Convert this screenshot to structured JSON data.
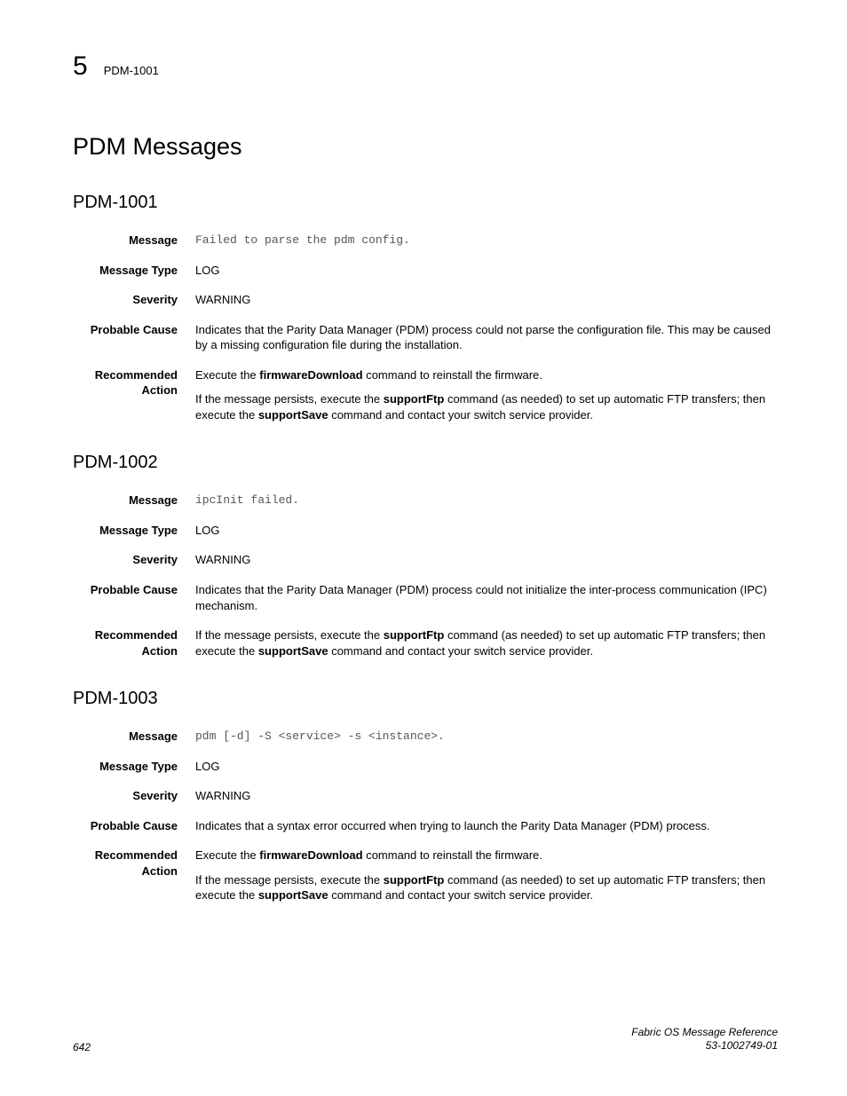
{
  "header": {
    "chapter": "5",
    "code": "PDM-1001"
  },
  "title": "PDM Messages",
  "labels": {
    "message": "Message",
    "message_type": "Message Type",
    "severity": "Severity",
    "probable_cause": "Probable Cause",
    "recommended_action": "Recommended Action"
  },
  "messages": [
    {
      "id": "PDM-1001",
      "message": "Failed to parse the pdm config.",
      "message_type": "LOG",
      "severity": "WARNING",
      "probable_cause": "Indicates that the Parity Data Manager (PDM) process could not parse the configuration file. This may be caused by a missing configuration file during the installation.",
      "recommended_action": [
        [
          {
            "t": "Execute the "
          },
          {
            "t": "firmwareDownload",
            "b": true
          },
          {
            "t": " command to reinstall the firmware."
          }
        ],
        [
          {
            "t": "If the message persists, execute the "
          },
          {
            "t": "supportFtp",
            "b": true
          },
          {
            "t": " command (as needed) to set up automatic FTP transfers; then execute the "
          },
          {
            "t": "supportSave",
            "b": true
          },
          {
            "t": " command and contact your switch service provider."
          }
        ]
      ]
    },
    {
      "id": "PDM-1002",
      "message": "ipcInit failed.",
      "message_type": "LOG",
      "severity": "WARNING",
      "probable_cause": "Indicates that the Parity Data Manager (PDM) process could not initialize the inter-process communication (IPC) mechanism.",
      "recommended_action": [
        [
          {
            "t": "If the message persists, execute the "
          },
          {
            "t": "supportFtp",
            "b": true
          },
          {
            "t": " command (as needed) to set up automatic FTP transfers; then execute the "
          },
          {
            "t": "supportSave",
            "b": true
          },
          {
            "t": " command and contact your switch service provider."
          }
        ]
      ]
    },
    {
      "id": "PDM-1003",
      "message": "pdm [-d] -S <service> -s <instance>.",
      "message_type": "LOG",
      "severity": "WARNING",
      "probable_cause": "Indicates that a syntax error occurred when trying to launch the Parity Data Manager (PDM) process.",
      "recommended_action": [
        [
          {
            "t": "Execute the "
          },
          {
            "t": "firmwareDownload",
            "b": true
          },
          {
            "t": " command to reinstall the firmware."
          }
        ],
        [
          {
            "t": "If the message persists, execute the "
          },
          {
            "t": "supportFtp",
            "b": true
          },
          {
            "t": " command (as needed) to set up automatic FTP transfers; then execute the "
          },
          {
            "t": "supportSave",
            "b": true
          },
          {
            "t": " command and contact your switch service provider."
          }
        ]
      ]
    }
  ],
  "footer": {
    "page": "642",
    "doc_title": "Fabric OS Message Reference",
    "doc_number": "53-1002749-01"
  }
}
